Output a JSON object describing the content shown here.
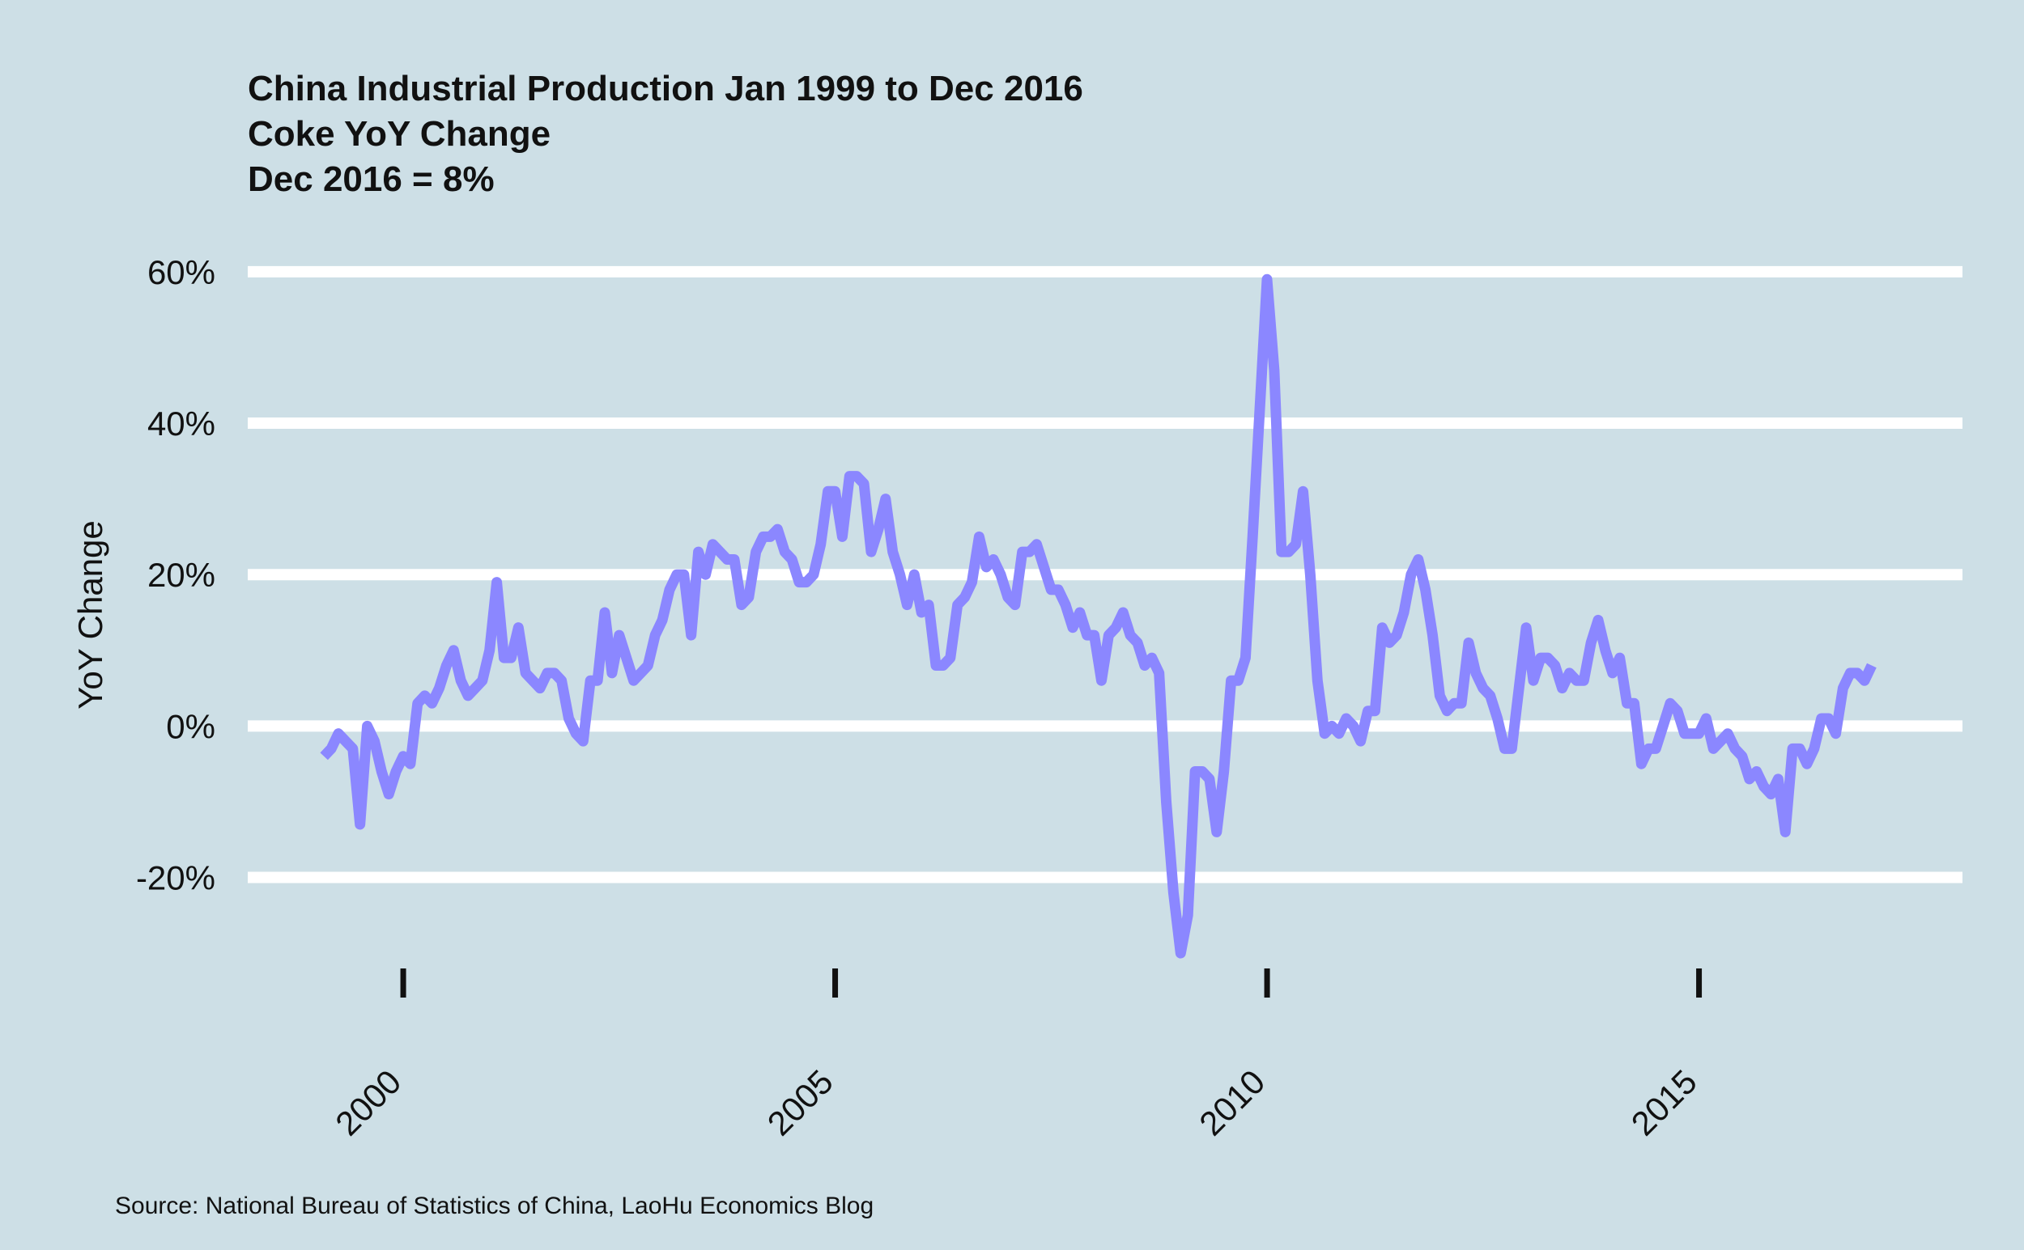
{
  "chart_data": {
    "type": "line",
    "title": "China Industrial Production Jan 1999 to Dec 2016",
    "subtitle": "Coke YoY Change",
    "subtitle2": "Dec 2016 = 8%",
    "xlabel": "",
    "ylabel": "YoY Change",
    "source": "Source: National Bureau of Statistics of China, LaoHu Economics Blog",
    "x_start": 1999.083,
    "x_step": 0.0833333,
    "xlim": [
      1998.2,
      2018.05
    ],
    "ylim": [
      -39.5,
      69.5
    ],
    "y_ticks": [
      -20,
      0,
      20,
      40,
      60
    ],
    "y_tick_labels": [
      "-20%",
      "0%",
      "20%",
      "40%",
      "60%"
    ],
    "x_ticks": [
      2000,
      2005,
      2010,
      2015
    ],
    "x_tick_labels": [
      "2000",
      "2005",
      "2010",
      "2015"
    ],
    "grid": "horizontal",
    "series": [
      {
        "name": "Coke YoY Change",
        "color": "#8b87ff",
        "values": [
          -4,
          -3,
          -1,
          -2,
          -3,
          -13,
          0,
          -2,
          -6,
          -9,
          -6,
          -4,
          -5,
          3,
          4,
          3,
          5,
          8,
          10,
          6,
          4,
          5,
          6,
          10,
          19,
          9,
          9,
          13,
          7,
          6,
          5,
          7,
          7,
          6,
          1,
          -1,
          -2,
          6,
          6,
          15,
          7,
          12,
          9,
          6,
          7,
          8,
          12,
          14,
          18,
          20,
          20,
          12,
          23,
          20,
          24,
          23,
          22,
          22,
          16,
          17,
          23,
          25,
          25,
          26,
          23,
          22,
          19,
          19,
          20,
          24,
          31,
          31,
          25,
          33,
          33,
          32,
          23,
          26,
          30,
          23,
          20,
          16,
          20,
          15,
          16,
          8,
          8,
          9,
          16,
          17,
          19,
          25,
          21,
          22,
          20,
          17,
          16,
          23,
          23,
          24,
          21,
          18,
          18,
          16,
          13,
          15,
          12,
          12,
          6,
          12,
          13,
          15,
          12,
          11,
          8,
          9,
          7,
          -10,
          -22,
          -30,
          -25,
          -6,
          -6,
          -7,
          -14,
          -6,
          6,
          6,
          9,
          25,
          42,
          59,
          47,
          23,
          23,
          24,
          31,
          20,
          6,
          -1,
          0,
          -1,
          1,
          0,
          -2,
          2,
          2,
          13,
          11,
          12,
          15,
          20,
          22,
          18,
          12,
          4,
          2,
          3,
          3,
          11,
          7,
          5,
          4,
          1,
          -3,
          -3,
          5,
          13,
          6,
          9,
          9,
          8,
          5,
          7,
          6,
          6,
          11,
          14,
          10,
          7,
          9,
          3,
          3,
          -5,
          -3,
          -3,
          0,
          3,
          2,
          -1,
          -1,
          -1,
          1,
          -3,
          -2,
          -1,
          -3,
          -4,
          -7,
          -6,
          -8,
          -9,
          -7,
          -14,
          -3,
          -3,
          -5,
          -3,
          1,
          1,
          -1,
          5,
          7,
          7,
          6,
          8
        ]
      }
    ]
  }
}
